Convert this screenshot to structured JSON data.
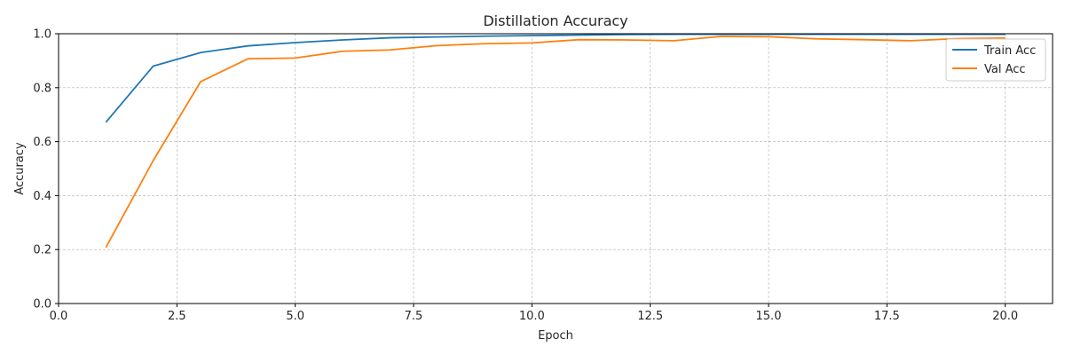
{
  "chart_data": {
    "type": "line",
    "title": "Distillation Accuracy",
    "xlabel": "Epoch",
    "ylabel": "Accuracy",
    "xlim": [
      0,
      21
    ],
    "ylim": [
      0,
      1.0
    ],
    "xticks": [
      "0.0",
      "2.5",
      "5.0",
      "7.5",
      "10.0",
      "12.5",
      "15.0",
      "17.5",
      "20.0"
    ],
    "yticks": [
      "0.0",
      "0.2",
      "0.4",
      "0.6",
      "0.8",
      "1.0"
    ],
    "grid": true,
    "legend_position": "top-right",
    "x": [
      1,
      2,
      3,
      4,
      5,
      6,
      7,
      8,
      9,
      10,
      11,
      12,
      13,
      14,
      15,
      16,
      17,
      18,
      19,
      20
    ],
    "series": [
      {
        "name": "Train Acc",
        "color": "#1f77b4",
        "values": [
          0.672,
          0.88,
          0.93,
          0.955,
          0.967,
          0.977,
          0.985,
          0.988,
          0.991,
          0.993,
          0.995,
          0.997,
          0.998,
          0.998,
          0.998,
          0.998,
          0.998,
          0.998,
          0.998,
          0.998
        ]
      },
      {
        "name": "Val Acc",
        "color": "#ff7f0e",
        "values": [
          0.208,
          0.53,
          0.822,
          0.907,
          0.91,
          0.935,
          0.94,
          0.956,
          0.963,
          0.966,
          0.978,
          0.977,
          0.974,
          0.99,
          0.989,
          0.981,
          0.978,
          0.974,
          0.982,
          0.984
        ]
      }
    ]
  }
}
